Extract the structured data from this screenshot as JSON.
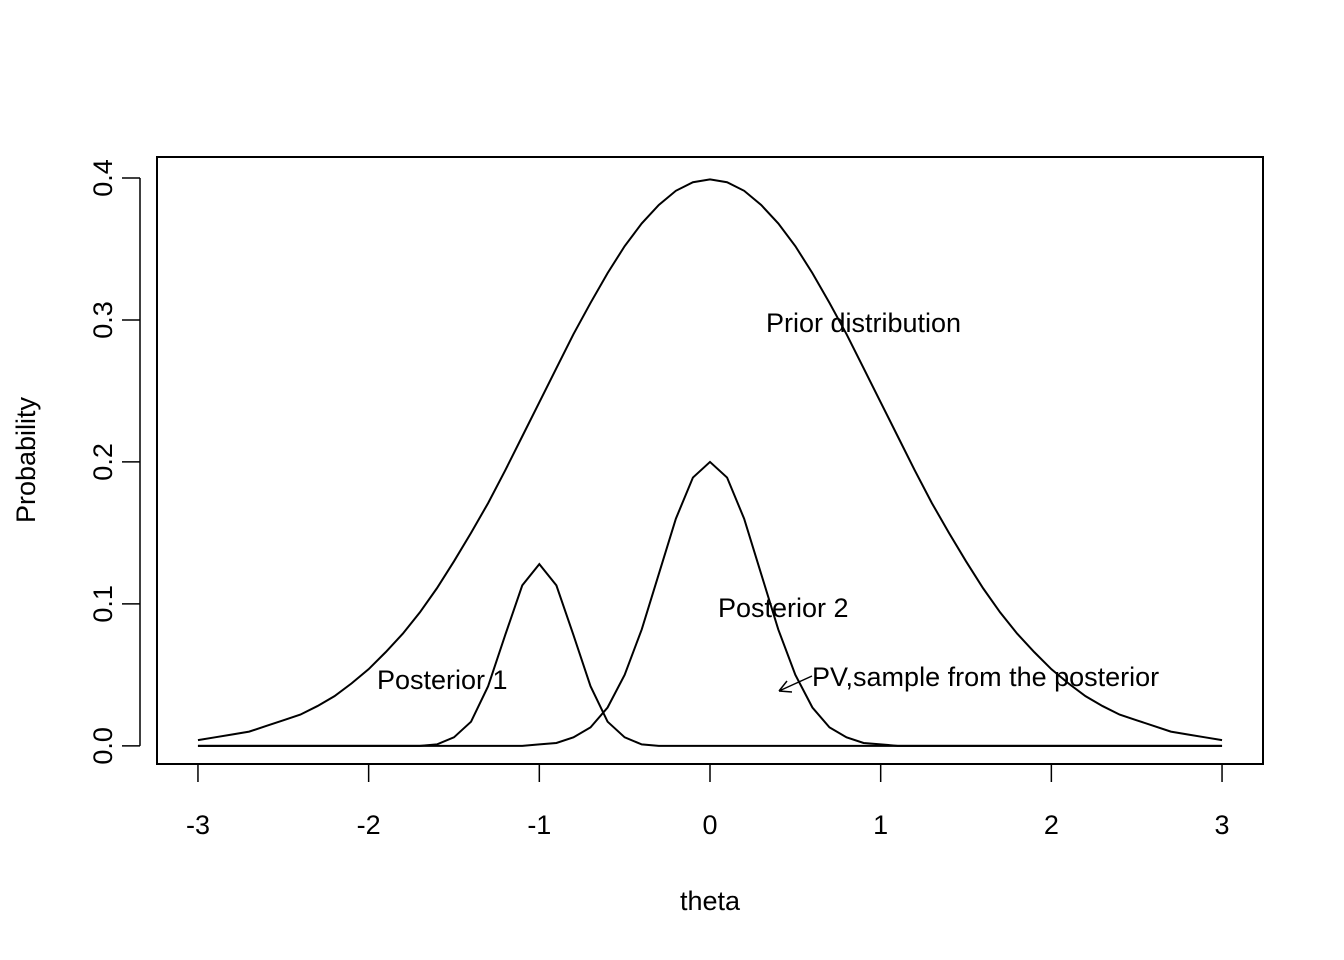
{
  "chart_data": {
    "type": "line",
    "x_label": "theta",
    "y_label": "Probability",
    "x": [
      -3,
      -2.9,
      -2.8,
      -2.7,
      -2.6,
      -2.5,
      -2.4,
      -2.3,
      -2.2,
      -2.1,
      -2,
      -1.9,
      -1.8,
      -1.7,
      -1.6,
      -1.5,
      -1.4,
      -1.3,
      -1.2,
      -1.1,
      -1,
      -0.9,
      -0.8,
      -0.7,
      -0.6,
      -0.5,
      -0.4,
      -0.3,
      -0.2,
      -0.1,
      0,
      0.1,
      0.2,
      0.3,
      0.4,
      0.5,
      0.6,
      0.7,
      0.8,
      0.9,
      1,
      1.1,
      1.2,
      1.3,
      1.4,
      1.5,
      1.6,
      1.7,
      1.8,
      1.9,
      2,
      2.1,
      2.2,
      2.3,
      2.4,
      2.5,
      2.6,
      2.7,
      2.8,
      2.9,
      3
    ],
    "series": [
      {
        "color": "#000000",
        "values": [
          0.004,
          0.006,
          0.008,
          0.01,
          0.014,
          0.018,
          0.022,
          0.028,
          0.035,
          0.044,
          0.054,
          0.066,
          0.079,
          0.094,
          0.111,
          0.13,
          0.15,
          0.171,
          0.194,
          0.218,
          0.242,
          0.266,
          0.29,
          0.312,
          0.333,
          0.352,
          0.368,
          0.381,
          0.391,
          0.397,
          0.399,
          0.397,
          0.391,
          0.381,
          0.368,
          0.352,
          0.333,
          0.312,
          0.29,
          0.266,
          0.242,
          0.218,
          0.194,
          0.171,
          0.15,
          0.13,
          0.111,
          0.094,
          0.079,
          0.066,
          0.054,
          0.044,
          0.035,
          0.028,
          0.022,
          0.018,
          0.014,
          0.01,
          0.008,
          0.006,
          0.004
        ]
      },
      {
        "color": "#000000",
        "values": [
          0,
          0,
          0,
          0,
          0,
          0,
          0,
          0,
          0,
          0,
          0,
          0,
          0,
          0,
          0.001,
          0.006,
          0.017,
          0.042,
          0.078,
          0.113,
          0.128,
          0.113,
          0.078,
          0.042,
          0.017,
          0.006,
          0.001,
          0,
          0,
          0,
          0,
          0,
          0,
          0,
          0,
          0,
          0,
          0,
          0,
          0,
          0,
          0,
          0,
          0,
          0,
          0,
          0,
          0,
          0,
          0,
          0,
          0,
          0,
          0,
          0,
          0,
          0,
          0,
          0,
          0,
          0
        ]
      },
      {
        "color": "#000000",
        "values": [
          0,
          0,
          0,
          0,
          0,
          0,
          0,
          0,
          0,
          0,
          0,
          0,
          0,
          0,
          0,
          0,
          0,
          0,
          0,
          0,
          0.001,
          0.002,
          0.006,
          0.013,
          0.027,
          0.05,
          0.082,
          0.121,
          0.16,
          0.189,
          0.2,
          0.189,
          0.16,
          0.121,
          0.082,
          0.05,
          0.027,
          0.013,
          0.006,
          0.002,
          0.001,
          0,
          0,
          0,
          0,
          0,
          0,
          0,
          0,
          0,
          0,
          0,
          0,
          0,
          0,
          0,
          0,
          0,
          0,
          0,
          0
        ]
      }
    ],
    "annotations": [
      "Prior distribution",
      "Posterior 2",
      "Posterior 1",
      "PV,sample from the posterior"
    ],
    "xlim": [
      -3.24,
      3.24
    ],
    "ylim": [
      -0.0128,
      0.4148
    ],
    "xticks": [
      -3,
      -2,
      -1,
      0,
      1,
      2,
      3
    ],
    "yticks": [
      {
        "value": 0,
        "label": "0.0"
      },
      0.1,
      0.2,
      0.3,
      0.4
    ],
    "grid": false
  }
}
